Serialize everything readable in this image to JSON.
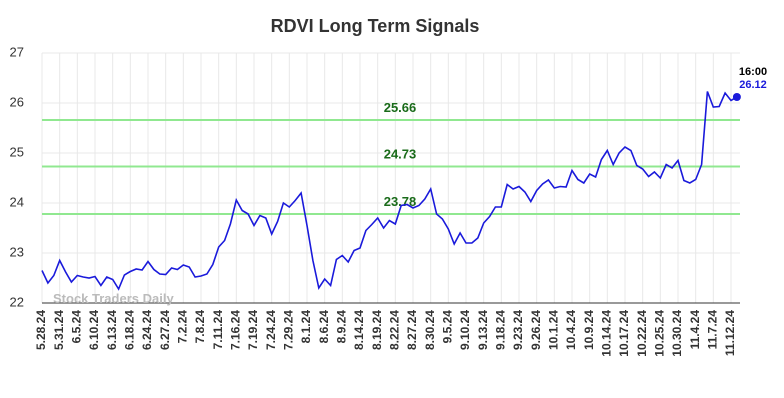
{
  "chart_data": {
    "type": "line",
    "title": "RDVI Long Term Signals",
    "watermark": "Stock Traders Daily",
    "last_time_label": "16:00",
    "categories": [
      "5.28.24",
      null,
      null,
      "5.31.24",
      null,
      null,
      "6.5.24",
      null,
      null,
      "6.10.24",
      null,
      null,
      "6.13.24",
      null,
      null,
      "6.18.24",
      null,
      null,
      "6.24.24",
      null,
      null,
      "6.27.24",
      null,
      null,
      "7.2.24",
      null,
      null,
      "7.8.24",
      null,
      null,
      "7.11.24",
      null,
      null,
      "7.16.24",
      null,
      null,
      "7.19.24",
      null,
      null,
      "7.24.24",
      null,
      null,
      "7.29.24",
      null,
      null,
      "8.1.24",
      null,
      null,
      "8.6.24",
      null,
      null,
      "8.9.24",
      null,
      null,
      "8.14.24",
      null,
      null,
      "8.19.24",
      null,
      null,
      "8.22.24",
      null,
      null,
      "8.27.24",
      null,
      null,
      "8.30.24",
      null,
      null,
      "9.5.24",
      null,
      null,
      "9.10.24",
      null,
      null,
      "9.13.24",
      null,
      null,
      "9.18.24",
      null,
      null,
      "9.23.24",
      null,
      null,
      "9.26.24",
      null,
      null,
      "10.1.24",
      null,
      null,
      "10.4.24",
      null,
      null,
      "10.9.24",
      null,
      null,
      "10.14.24",
      null,
      null,
      "10.17.24",
      null,
      null,
      "10.22.24",
      null,
      null,
      "10.25.24",
      null,
      null,
      "10.30.24",
      null,
      null,
      "11.4.24",
      null,
      null,
      "11.7.24",
      null,
      null,
      "11.12.24",
      null
    ],
    "series": [
      {
        "name": "RDVI",
        "color": "#1a1adb",
        "values": [
          22.65,
          22.4,
          22.55,
          22.85,
          22.62,
          22.42,
          22.55,
          22.52,
          22.5,
          22.53,
          22.35,
          22.52,
          22.47,
          22.28,
          22.56,
          22.63,
          22.68,
          22.66,
          22.83,
          22.67,
          22.58,
          22.57,
          22.7,
          22.67,
          22.76,
          22.72,
          22.52,
          22.54,
          22.58,
          22.77,
          23.12,
          23.25,
          23.58,
          24.06,
          23.85,
          23.78,
          23.55,
          23.75,
          23.7,
          23.38,
          23.63,
          24.0,
          23.92,
          24.05,
          24.2,
          23.55,
          22.85,
          22.3,
          22.48,
          22.35,
          22.87,
          22.95,
          22.82,
          23.05,
          23.1,
          23.45,
          23.57,
          23.7,
          23.5,
          23.65,
          23.58,
          23.95,
          23.97,
          23.9,
          23.95,
          24.08,
          24.28,
          23.78,
          23.68,
          23.48,
          23.18,
          23.4,
          23.2,
          23.2,
          23.3,
          23.6,
          23.73,
          23.92,
          23.92,
          24.37,
          24.28,
          24.33,
          24.22,
          24.03,
          24.25,
          24.38,
          24.46,
          24.3,
          24.33,
          24.32,
          24.65,
          24.47,
          24.4,
          24.58,
          24.52,
          24.87,
          25.05,
          24.77,
          25.0,
          25.12,
          25.05,
          24.75,
          24.68,
          24.53,
          24.62,
          24.5,
          24.77,
          24.7,
          24.85,
          24.45,
          24.4,
          24.47,
          24.77,
          26.23,
          25.92,
          25.93,
          26.2,
          26.05,
          26.12
        ]
      }
    ],
    "hlines": [
      {
        "value": 25.66,
        "color": "#90e890"
      },
      {
        "value": 24.73,
        "color": "#90e890"
      },
      {
        "value": 23.78,
        "color": "#90e890"
      }
    ],
    "hline_label_color": "#1a6b1a",
    "ylim": [
      22,
      27
    ],
    "yticks": [
      22,
      23,
      24,
      25,
      26,
      27
    ],
    "grid": true
  }
}
